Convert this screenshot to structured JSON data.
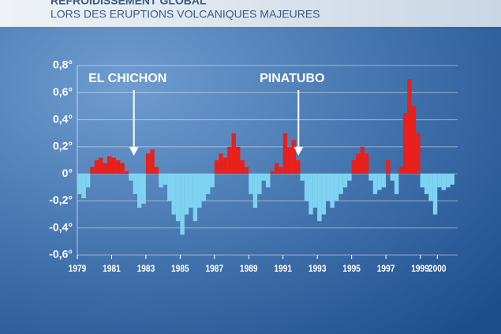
{
  "chart_data": {
    "type": "bar",
    "title": "REFROIDISSEMENT GLOBAL",
    "subtitle": "LORS DES ERUPTIONS VOLCANIQUES MAJEURES",
    "annotations": [
      {
        "text": "EL CHICHON",
        "x": 1982.3
      },
      {
        "text": "PINATUBO",
        "x": 1991.9
      }
    ],
    "x": [
      1979,
      1979.25,
      1979.5,
      1979.75,
      1980,
      1980.25,
      1980.5,
      1980.75,
      1981,
      1981.25,
      1981.5,
      1981.75,
      1982,
      1982.25,
      1982.5,
      1982.75,
      1983,
      1983.25,
      1983.5,
      1983.75,
      1984,
      1984.25,
      1984.5,
      1984.75,
      1985,
      1985.25,
      1985.5,
      1985.75,
      1986,
      1986.25,
      1986.5,
      1986.75,
      1987,
      1987.25,
      1987.5,
      1987.75,
      1988,
      1988.25,
      1988.5,
      1988.75,
      1989,
      1989.25,
      1989.5,
      1989.75,
      1990,
      1990.25,
      1990.5,
      1990.75,
      1991,
      1991.25,
      1991.5,
      1991.75,
      1992,
      1992.25,
      1992.5,
      1992.75,
      1993,
      1993.25,
      1993.5,
      1993.75,
      1994,
      1994.25,
      1994.5,
      1994.75,
      1995,
      1995.25,
      1995.5,
      1995.75,
      1996,
      1996.25,
      1996.5,
      1996.75,
      1997,
      1997.25,
      1997.5,
      1997.75,
      1998,
      1998.25,
      1998.5,
      1998.75,
      1999,
      1999.25,
      1999.5,
      1999.75,
      2000,
      2000.25,
      2000.5,
      2000.75
    ],
    "values": [
      -0.15,
      -0.18,
      -0.1,
      0.05,
      0.1,
      0.12,
      0.08,
      0.13,
      0.12,
      0.1,
      0.08,
      0.02,
      -0.05,
      -0.15,
      -0.25,
      -0.22,
      0.15,
      0.18,
      0.05,
      -0.1,
      -0.08,
      -0.2,
      -0.3,
      -0.35,
      -0.45,
      -0.3,
      -0.25,
      -0.35,
      -0.25,
      -0.2,
      -0.15,
      -0.1,
      0.1,
      0.15,
      0.12,
      0.2,
      0.3,
      0.2,
      0.1,
      0.05,
      -0.15,
      -0.25,
      -0.15,
      -0.05,
      -0.1,
      0.02,
      0.08,
      0.05,
      0.3,
      0.2,
      0.25,
      0.1,
      -0.05,
      -0.2,
      -0.3,
      -0.25,
      -0.35,
      -0.3,
      -0.2,
      -0.25,
      -0.2,
      -0.15,
      -0.1,
      -0.05,
      0.1,
      0.15,
      0.2,
      0.15,
      -0.05,
      -0.15,
      -0.12,
      -0.1,
      0.1,
      -0.05,
      -0.15,
      0.05,
      0.45,
      0.7,
      0.5,
      0.3,
      -0.1,
      -0.15,
      -0.2,
      -0.3,
      -0.1,
      -0.12,
      -0.1,
      -0.08
    ],
    "color_positive": "#e8201c",
    "color_negative": "#7fd3f2",
    "xlim": [
      1979,
      2001
    ],
    "xticks": [
      1979,
      1981,
      1983,
      1985,
      1987,
      1989,
      1991,
      1993,
      1995,
      1997,
      1999,
      2000
    ],
    "ylim": [
      -0.6,
      0.8
    ],
    "yticks": [
      {
        "value": -0.6,
        "label": "-0,6°"
      },
      {
        "value": -0.4,
        "label": "-0,4°"
      },
      {
        "value": -0.2,
        "label": "-0,2°"
      },
      {
        "value": 0,
        "label": "0°"
      },
      {
        "value": 0.2,
        "label": "0,2°"
      },
      {
        "value": 0.4,
        "label": "0,4°"
      },
      {
        "value": 0.6,
        "label": "0,6°"
      },
      {
        "value": 0.8,
        "label": "0,8°"
      }
    ],
    "grid": true
  }
}
